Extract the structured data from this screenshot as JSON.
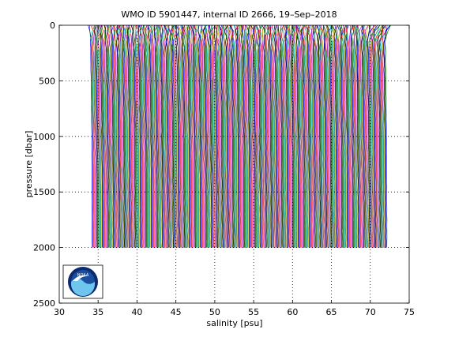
{
  "chart_data": {
    "type": "line",
    "title": "WMO ID 5901447, internal ID 2666, 19–Sep–2018",
    "xlabel": "salinity [psu]",
    "ylabel": "pressure [dbar]",
    "xlim": [
      30,
      75
    ],
    "ylim": [
      0,
      2500
    ],
    "y_reversed": true,
    "x_ticks": [
      "30",
      "35",
      "40",
      "45",
      "50",
      "55",
      "60",
      "65",
      "70",
      "75"
    ],
    "y_ticks": [
      "0",
      "500",
      "1000",
      "1500",
      "2000",
      "2500"
    ],
    "grid": "dotted",
    "legend": "none",
    "profiles": {
      "description_of_series": "staggered salinity profiles; each successive profile offset by 0.1 psu",
      "count": 380,
      "first_surface_salinity": 33.9,
      "offset_step": 0.1,
      "surface_pressure": 0,
      "bottom_pressure": 2000,
      "colors": [
        "#0000ff",
        "#008000",
        "#ff0000",
        "#00bfbf",
        "#bf00bf",
        "#bfbf00",
        "#000000"
      ]
    }
  },
  "logo": {
    "name": "noaa-logo",
    "text": "NOAA",
    "colors": {
      "ring": "#0b2a6f",
      "sky": "#1a4fa0",
      "wave": "#6ec6ef",
      "bird": "#ffffff"
    }
  }
}
